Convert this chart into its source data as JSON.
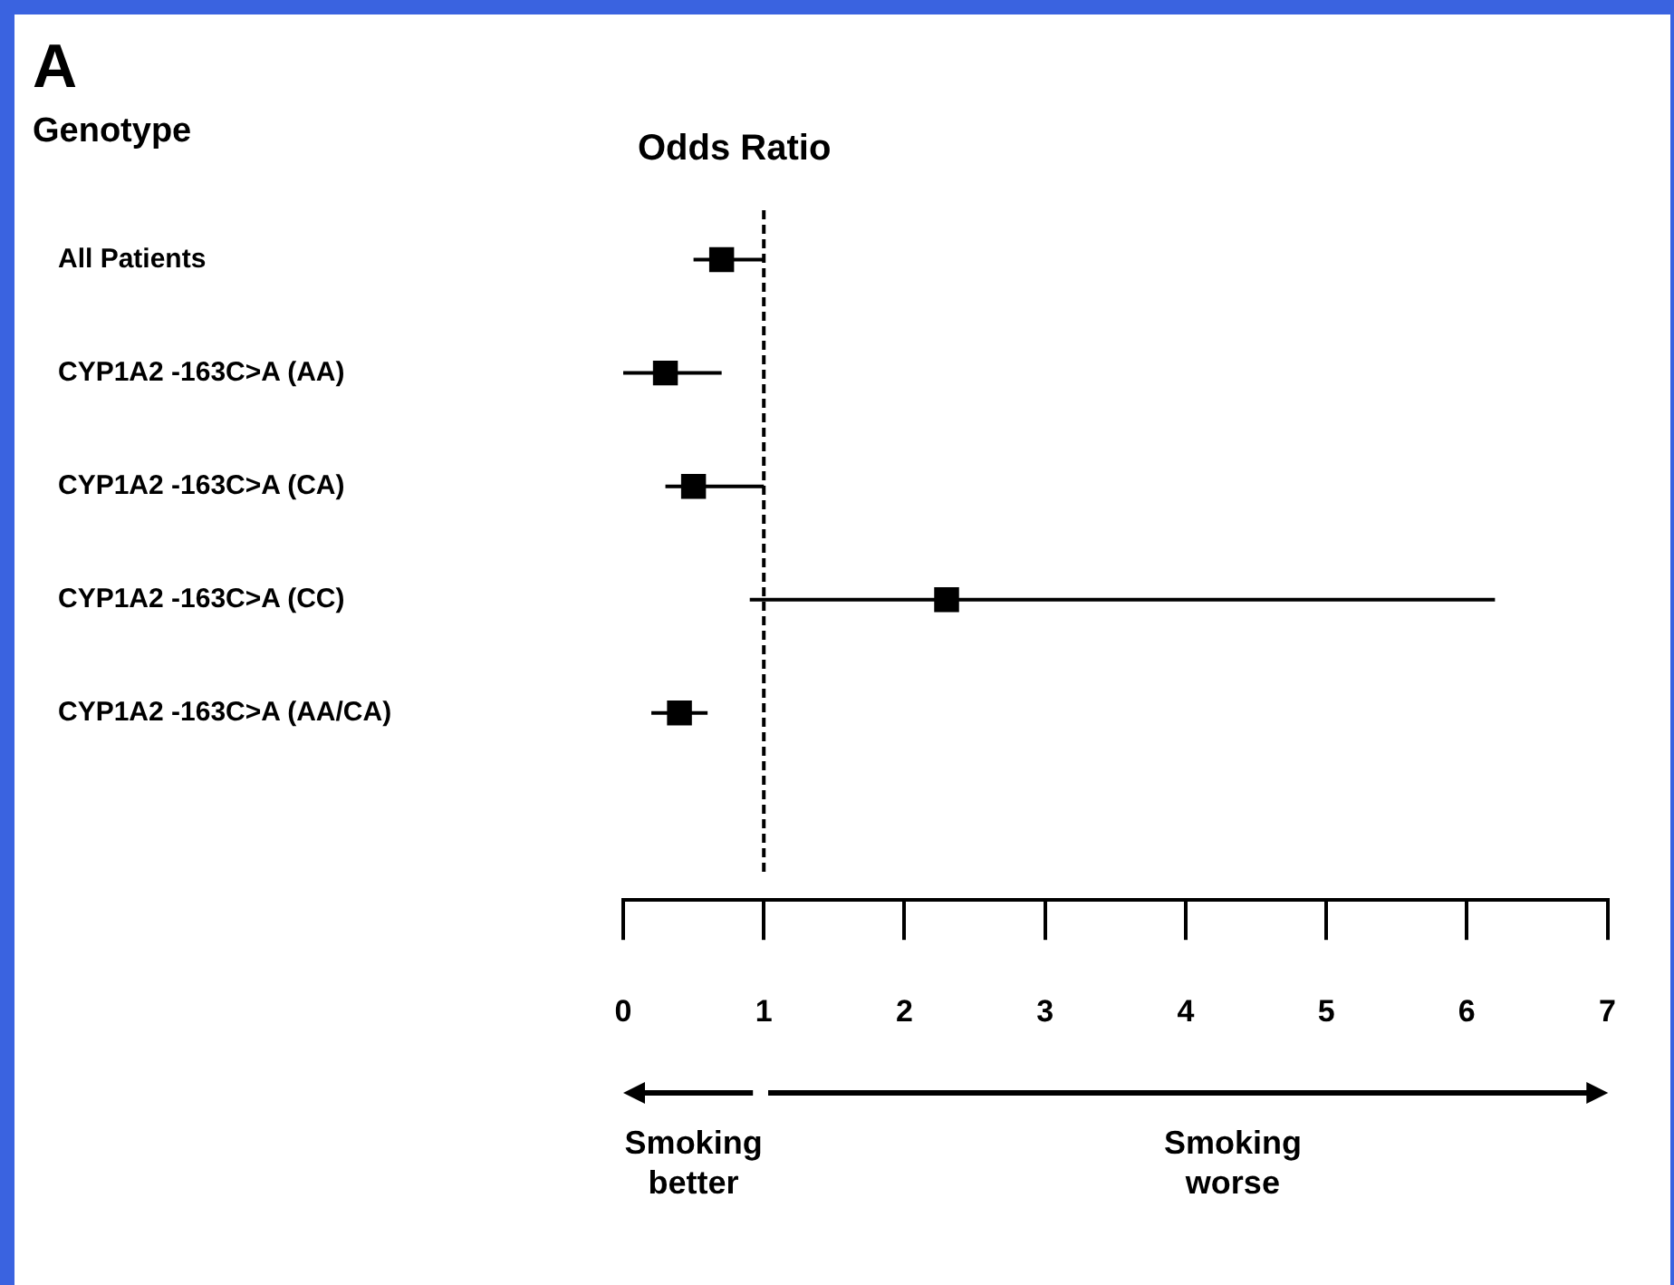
{
  "chart_data": {
    "type": "scatter",
    "title": "A",
    "xlabel": "Odds Ratio",
    "ylabel": "Genotype",
    "orientation": "horizontal",
    "categories": [
      "All Patients",
      "CYP1A2 -163C>A (AA)",
      "CYP1A2 -163C>A (CA)",
      "CYP1A2 -163C>A (CC)",
      "CYP1A2 -163C>A (AA/CA)"
    ],
    "values": [
      0.7,
      0.3,
      0.5,
      2.3,
      0.4
    ],
    "errors": [
      [
        0.5,
        1.0
      ],
      [
        0.0,
        0.7
      ],
      [
        0.3,
        1.0
      ],
      [
        0.9,
        6.2
      ],
      [
        0.2,
        0.6
      ]
    ],
    "color": "#000000",
    "marker": "square",
    "grid": false,
    "xlim": [
      0,
      7
    ],
    "xticks": [
      0,
      1,
      2,
      3,
      4,
      5,
      6,
      7
    ],
    "ref_lines": [
      {
        "axis": "x",
        "value": 1,
        "line_style": "dashed",
        "color": "#000000"
      }
    ],
    "annotations": [
      "Smoking\nbetter",
      "Smoking\nworse"
    ]
  }
}
